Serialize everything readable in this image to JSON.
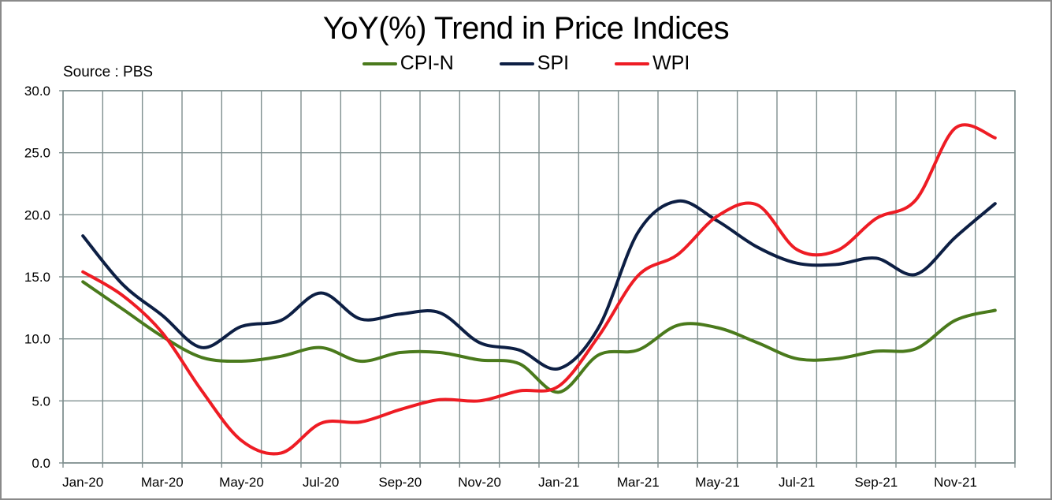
{
  "chart_data": {
    "type": "line",
    "title": "YoY(%) Trend in Price Indices",
    "source_note": "Source : PBS",
    "xlabel": "",
    "ylabel": "",
    "ylim": [
      0,
      30
    ],
    "y_ticks": [
      "0.0",
      "5.0",
      "10.0",
      "15.0",
      "20.0",
      "25.0",
      "30.0"
    ],
    "x": [
      "Jan-20",
      "Feb-20",
      "Mar-20",
      "Apr-20",
      "May-20",
      "Jun-20",
      "Jul-20",
      "Aug-20",
      "Sep-20",
      "Oct-20",
      "Nov-20",
      "Dec-20",
      "Jan-21",
      "Feb-21",
      "Mar-21",
      "Apr-21",
      "May-21",
      "Jun-21",
      "Jul-21",
      "Aug-21",
      "Sep-21",
      "Oct-21",
      "Nov-21",
      "Dec-21"
    ],
    "x_tick_labels": [
      "Jan-20",
      "Mar-20",
      "May-20",
      "Jul-20",
      "Sep-20",
      "Nov-20",
      "Jan-21",
      "Mar-21",
      "May-21",
      "Jul-21",
      "Sep-21",
      "Nov-21"
    ],
    "grid": true,
    "legend_position": "top-center",
    "series": [
      {
        "name": "CPI-N",
        "color": "#4a7a1c",
        "values": [
          14.6,
          12.4,
          10.2,
          8.5,
          8.2,
          8.6,
          9.3,
          8.2,
          8.9,
          8.9,
          8.3,
          8.0,
          5.7,
          8.7,
          9.1,
          11.1,
          10.9,
          9.7,
          8.4,
          8.4,
          9.0,
          9.2,
          11.5,
          12.3
        ]
      },
      {
        "name": "SPI",
        "color": "#0d1f44",
        "values": [
          18.3,
          14.4,
          11.9,
          9.3,
          11.0,
          11.5,
          13.7,
          11.6,
          12.0,
          12.1,
          9.7,
          9.1,
          7.6,
          10.9,
          18.6,
          21.1,
          19.5,
          17.4,
          16.1,
          16.0,
          16.5,
          15.2,
          18.2,
          20.9
        ]
      },
      {
        "name": "WPI",
        "color": "#ee1c24",
        "values": [
          15.4,
          13.5,
          10.5,
          5.8,
          1.8,
          0.8,
          3.2,
          3.3,
          4.3,
          5.1,
          5.0,
          5.8,
          6.2,
          10.2,
          15.1,
          16.8,
          19.9,
          20.8,
          17.2,
          17.1,
          19.7,
          21.2,
          27.0,
          26.2
        ]
      }
    ]
  }
}
